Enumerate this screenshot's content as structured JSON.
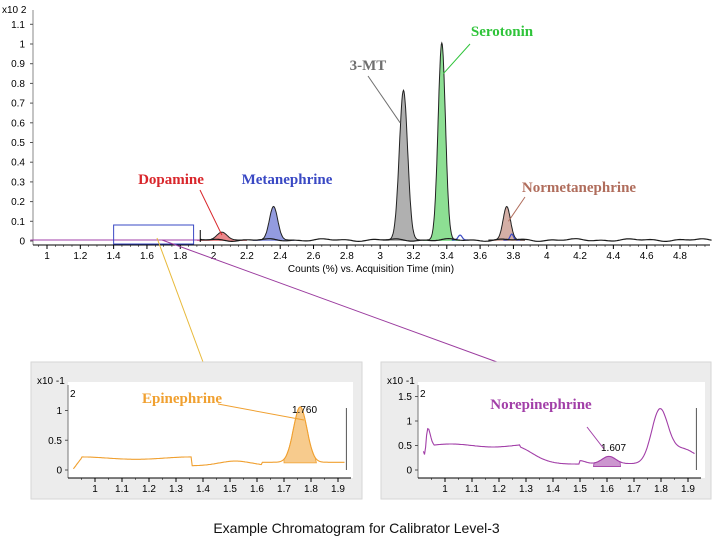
{
  "caption": "Example Chromatogram for Calibrator Level-3",
  "colors": {
    "dopamine": "#d9262b",
    "metanephrine": "#3a49c4",
    "mt3": "#6f6f6f",
    "serotonin": "#2fc43a",
    "normetanephrine": "#b06d5c",
    "epinephrine": "#f0a030",
    "norepinephrine": "#a23fa8"
  },
  "chart_data": [
    {
      "type": "line",
      "title": "",
      "xlabel": "Counts (%) vs. Acquisition Time (min)",
      "ylabel": "",
      "y_multiplier": "x10 2",
      "xlim": [
        0.9,
        4.99
      ],
      "ylim": [
        -0.02,
        1.12
      ],
      "x_ticks": [
        "1",
        "1.2",
        "1.4",
        "1.6",
        "1.8",
        "2",
        "2.2",
        "2.4",
        "2.6",
        "2.8",
        "3",
        "3.2",
        "3.4",
        "3.6",
        "3.8",
        "4",
        "4.2",
        "4.4",
        "4.6",
        "4.8"
      ],
      "y_ticks": [
        "0",
        "0.1",
        "0.2",
        "0.3",
        "0.4",
        "0.5",
        "0.6",
        "0.7",
        "0.8",
        "0.9",
        "1",
        "1.1"
      ],
      "series": [
        {
          "name": "Dopamine",
          "peak_x": 2.05,
          "peak_y": 0.04,
          "width": 0.03
        },
        {
          "name": "Metanephrine",
          "peak_x": 2.36,
          "peak_y": 0.17,
          "width": 0.025
        },
        {
          "name": "3-MT",
          "peak_x": 3.14,
          "peak_y": 0.76,
          "width": 0.025
        },
        {
          "name": "Serotonin",
          "peak_x": 3.37,
          "peak_y": 1.0,
          "width": 0.022
        },
        {
          "name": "Normetanephrine",
          "peak_x": 3.76,
          "peak_y": 0.17,
          "width": 0.022
        }
      ],
      "zoom_box_x": [
        1.4,
        1.88
      ],
      "split_marker_x": 1.92
    },
    {
      "type": "area",
      "title": "Epinephrine",
      "y_multiplier": "x10 -1",
      "xlim": [
        0.9,
        1.92
      ],
      "ylim": [
        -0.05,
        1.4
      ],
      "x_ticks": [
        "1",
        "1.1",
        "1.2",
        "1.3",
        "1.4",
        "1.5",
        "1.6",
        "1.7",
        "1.8",
        "1.9"
      ],
      "y_ticks": [
        "0",
        "0.5",
        "1"
      ],
      "y_extra_label": "2",
      "peak_label": "1.760",
      "peak_x": 1.76,
      "peak_y": 0.93,
      "baseline": 0.2,
      "shaded_x": [
        1.7,
        1.82
      ]
    },
    {
      "type": "area",
      "title": "Norepinephrine",
      "y_multiplier": "x10 -1",
      "xlim": [
        0.9,
        1.92
      ],
      "ylim": [
        -0.05,
        1.7
      ],
      "x_ticks": [
        "1",
        "1.1",
        "1.2",
        "1.3",
        "1.4",
        "1.5",
        "1.6",
        "1.7",
        "1.8",
        "1.9"
      ],
      "y_ticks": [
        "0",
        "0.5",
        "1",
        "1.5"
      ],
      "y_extra_label": "2",
      "peak_label": "1.607",
      "peak_x": 1.607,
      "peak_y": 0.27,
      "shaded_x": [
        1.55,
        1.65
      ]
    }
  ]
}
